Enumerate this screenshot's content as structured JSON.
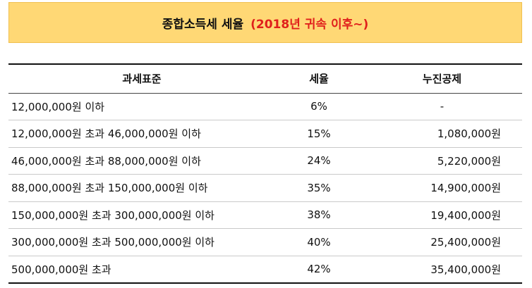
{
  "title": {
    "main": "종합소득세 세율",
    "accent": "(2018년 귀속 이후~)"
  },
  "table": {
    "headers": [
      "과세표준",
      "세율",
      "누진공제"
    ],
    "rows": [
      [
        "12,000,000원 이하",
        "6%",
        "-"
      ],
      [
        "12,000,000원 초과 46,000,000원 이하",
        "15%",
        "1,080,000원"
      ],
      [
        "46,000,000원 초과 88,000,000원 이하",
        "24%",
        "5,220,000원"
      ],
      [
        "88,000,000원 초과 150,000,000원 이하",
        "35%",
        "14,900,000원"
      ],
      [
        "150,000,000원 초과 300,000,000원 이하",
        "38%",
        "19,400,000원"
      ],
      [
        "300,000,000원 초과 500,000,000원 이하",
        "40%",
        "25,400,000원"
      ],
      [
        "500,000,000원 초과",
        "42%",
        "35,400,000원"
      ]
    ]
  },
  "colors": {
    "title_background": "#ffd875",
    "accent_text": "#e0201c"
  }
}
